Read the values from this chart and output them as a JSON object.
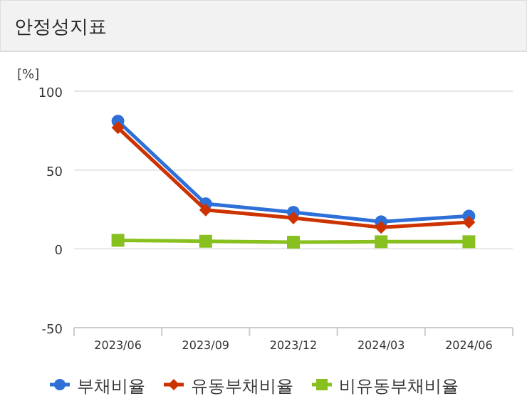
{
  "chart_data": {
    "type": "line",
    "title": "안정성지표",
    "ylabel": "[%]",
    "categories": [
      "2023/06",
      "2023/09",
      "2023/12",
      "2024/03",
      "2024/06"
    ],
    "series": [
      {
        "name": "부채비율",
        "color": "#2f6fd8",
        "marker": "circle",
        "values": [
          81,
          28.6,
          23.2,
          17.2,
          20.8
        ]
      },
      {
        "name": "유동부채비율",
        "color": "#cc3300",
        "marker": "diamond",
        "values": [
          76.8,
          24.7,
          19.6,
          13.6,
          16.9
        ]
      },
      {
        "name": "비유동부채비율",
        "color": "#88c020",
        "marker": "square",
        "values": [
          5.4,
          4.8,
          4.2,
          4.5,
          4.5
        ]
      }
    ],
    "ylim": [
      -50,
      100
    ],
    "yticks": [
      -50,
      0,
      50,
      100
    ],
    "grid": "y",
    "legend": "bottom"
  }
}
